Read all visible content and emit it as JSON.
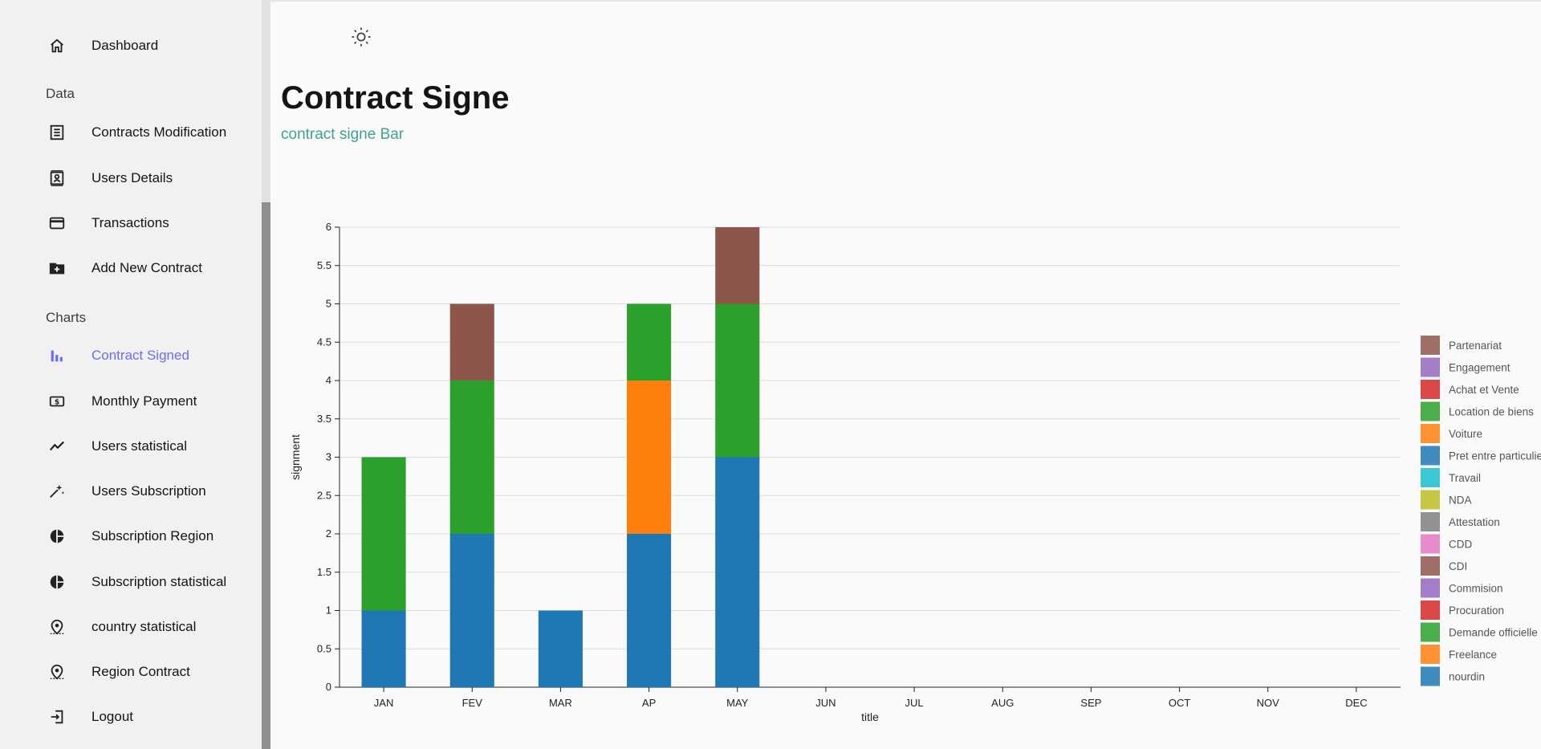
{
  "sidebar": {
    "dashboard": "Dashboard",
    "sections": {
      "data": "Data",
      "charts": "Charts"
    },
    "items": [
      {
        "label": "Contracts Modification",
        "icon": "receipt-icon"
      },
      {
        "label": "Users Details",
        "icon": "contact-card-icon"
      },
      {
        "label": "Transactions",
        "icon": "credit-card-icon"
      },
      {
        "label": "Add New Contract",
        "icon": "folder-add-icon"
      },
      {
        "label": "Contract Signed",
        "icon": "bar-chart-icon"
      },
      {
        "label": "Monthly Payment",
        "icon": "money-icon"
      },
      {
        "label": "Users statistical",
        "icon": "trend-line-icon"
      },
      {
        "label": "Users Subscription",
        "icon": "sparkle-icon"
      },
      {
        "label": "Subscription Region",
        "icon": "pie-chart-icon"
      },
      {
        "label": "Subscription statistical",
        "icon": "pie-chart-icon"
      },
      {
        "label": "country statistical",
        "icon": "location-icon"
      },
      {
        "label": "Region Contract",
        "icon": "location-icon"
      },
      {
        "label": "Logout",
        "icon": "logout-icon"
      }
    ],
    "active": "Contract Signed"
  },
  "header": {
    "theme_icon": "sun-icon"
  },
  "main": {
    "title": "Contract Signe",
    "subtitle": "contract signe Bar"
  },
  "colors": {
    "accent": "#6870fa",
    "subtitle": "#3da58a"
  },
  "chart_data": {
    "type": "bar",
    "stacked": true,
    "xlabel": "title",
    "ylabel": "signment",
    "ylim": [
      0,
      6
    ],
    "yticks": [
      "0",
      "0.5",
      "1",
      "1.5",
      "2",
      "2.5",
      "3",
      "3.5",
      "4",
      "4.5",
      "5",
      "5.5",
      "6"
    ],
    "categories": [
      "JAN",
      "FEV",
      "MAR",
      "AP",
      "MAY",
      "JUN",
      "JUL",
      "AUG",
      "SEP",
      "OCT",
      "NOV",
      "DEC"
    ],
    "series": [
      {
        "name": "Partenariat",
        "color": "#8c564b",
        "values": [
          0,
          1,
          0,
          0,
          1,
          0,
          0,
          0,
          0,
          0,
          0,
          0
        ]
      },
      {
        "name": "Engagement",
        "color": "#9467bd",
        "values": [
          0,
          0,
          0,
          0,
          0,
          0,
          0,
          0,
          0,
          0,
          0,
          0
        ]
      },
      {
        "name": "Achat et Vente",
        "color": "#d62728",
        "values": [
          0,
          0,
          0,
          0,
          0,
          0,
          0,
          0,
          0,
          0,
          0,
          0
        ]
      },
      {
        "name": "Location de biens",
        "color": "#2ca02c",
        "values": [
          2,
          2,
          0,
          1,
          2,
          0,
          0,
          0,
          0,
          0,
          0,
          0
        ]
      },
      {
        "name": "Voiture",
        "color": "#ff7f0e",
        "values": [
          0,
          0,
          0,
          2,
          0,
          0,
          0,
          0,
          0,
          0,
          0,
          0
        ]
      },
      {
        "name": "Pret entre particuliers",
        "color": "#1f77b4",
        "values": [
          1,
          2,
          1,
          2,
          3,
          0,
          0,
          0,
          0,
          0,
          0,
          0
        ]
      },
      {
        "name": "Travail",
        "color": "#17becf",
        "values": [
          0,
          0,
          0,
          0,
          0,
          0,
          0,
          0,
          0,
          0,
          0,
          0
        ]
      },
      {
        "name": "NDA",
        "color": "#bcbd22",
        "values": [
          0,
          0,
          0,
          0,
          0,
          0,
          0,
          0,
          0,
          0,
          0,
          0
        ]
      },
      {
        "name": "Attestation",
        "color": "#7f7f7f",
        "values": [
          0,
          0,
          0,
          0,
          0,
          0,
          0,
          0,
          0,
          0,
          0,
          0
        ]
      },
      {
        "name": "CDD",
        "color": "#e377c2",
        "values": [
          0,
          0,
          0,
          0,
          0,
          0,
          0,
          0,
          0,
          0,
          0,
          0
        ]
      },
      {
        "name": "CDI",
        "color": "#8c564b",
        "values": [
          0,
          0,
          0,
          0,
          0,
          0,
          0,
          0,
          0,
          0,
          0,
          0
        ]
      },
      {
        "name": "Commision",
        "color": "#9467bd",
        "values": [
          0,
          0,
          0,
          0,
          0,
          0,
          0,
          0,
          0,
          0,
          0,
          0
        ]
      },
      {
        "name": "Procuration",
        "color": "#d62728",
        "values": [
          0,
          0,
          0,
          0,
          0,
          0,
          0,
          0,
          0,
          0,
          0,
          0
        ]
      },
      {
        "name": "Demande officielle",
        "color": "#2ca02c",
        "values": [
          0,
          0,
          0,
          0,
          0,
          0,
          0,
          0,
          0,
          0,
          0,
          0
        ]
      },
      {
        "name": "Freelance",
        "color": "#ff7f0e",
        "values": [
          0,
          0,
          0,
          0,
          0,
          0,
          0,
          0,
          0,
          0,
          0,
          0
        ]
      },
      {
        "name": "nourdin",
        "color": "#1f77b4",
        "values": [
          0,
          0,
          0,
          0,
          0,
          0,
          0,
          0,
          0,
          0,
          0,
          0
        ]
      }
    ],
    "stack_order": [
      "Pret entre particuliers",
      "Voiture",
      "Location de biens",
      "Partenariat"
    ],
    "grid": true,
    "legend_position": "right"
  }
}
